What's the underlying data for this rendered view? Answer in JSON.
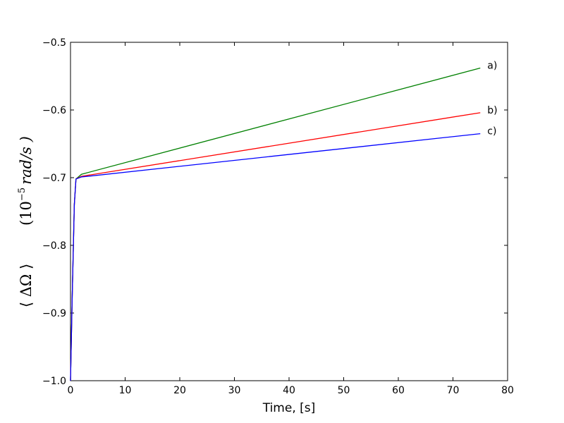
{
  "chart_data": {
    "type": "line",
    "title": "",
    "xlabel": "Time, [s]",
    "ylabel_parts": {
      "main": "⟨ ΔΩ ⟩",
      "unit_prefix": "(10",
      "unit_exponent": "−5",
      "unit_suffix": "rad/s )"
    },
    "xlim": [
      0,
      80
    ],
    "ylim": [
      -1.0,
      -0.5
    ],
    "xticks": [
      0,
      10,
      20,
      30,
      40,
      50,
      60,
      70,
      80
    ],
    "xtick_labels": [
      "0",
      "10",
      "20",
      "30",
      "40",
      "50",
      "60",
      "70",
      "80"
    ],
    "yticks": [
      -1.0,
      -0.9,
      -0.8,
      -0.7,
      -0.6,
      -0.5
    ],
    "ytick_labels": [
      "−1.0",
      "−0.9",
      "−0.8",
      "−0.7",
      "−0.6",
      "−0.5"
    ],
    "grid": false,
    "series": [
      {
        "label": "a)",
        "color": "#008000",
        "x": [
          0,
          0.3,
          0.7,
          1.0,
          2.0,
          75
        ],
        "y": [
          -1.0,
          -0.88,
          -0.74,
          -0.702,
          -0.695,
          -0.538
        ]
      },
      {
        "label": "b)",
        "color": "#ff0000",
        "x": [
          0,
          0.3,
          0.7,
          1.0,
          2.0,
          75
        ],
        "y": [
          -1.0,
          -0.88,
          -0.74,
          -0.702,
          -0.698,
          -0.604
        ]
      },
      {
        "label": "c)",
        "color": "#0000ff",
        "x": [
          0,
          0.3,
          0.7,
          1.0,
          2.0,
          75
        ],
        "y": [
          -1.0,
          -0.88,
          -0.74,
          -0.702,
          -0.699,
          -0.635
        ]
      }
    ]
  }
}
